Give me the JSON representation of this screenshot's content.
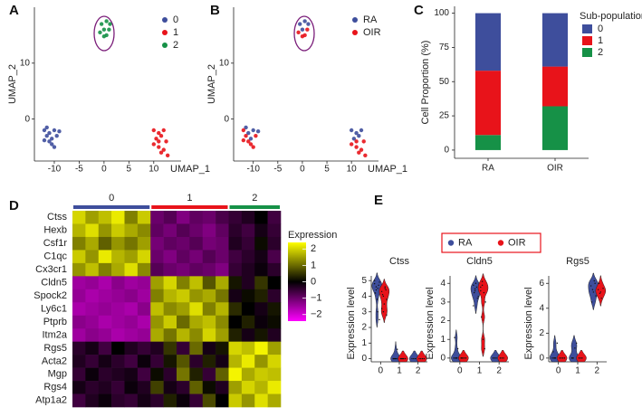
{
  "chart_data": [
    {
      "type": "scatter",
      "panel": "A",
      "xlabel": "UMAP_1",
      "ylabel": "UMAP_2",
      "xlim": [
        -14,
        15.5
      ],
      "ylim": [
        -7.5,
        20
      ],
      "xticks": [
        -10,
        -5,
        0,
        5,
        10
      ],
      "yticks": [
        0,
        10
      ],
      "series": [
        {
          "name": "0",
          "color": "#3e4e9c",
          "x": [
            -12,
            -11.5,
            -11,
            -10.5,
            -10,
            -9.5,
            -11,
            -10.5,
            -12,
            -9,
            -10,
            -11.5
          ],
          "y": [
            -2,
            -3,
            -2.5,
            -3.5,
            -2,
            -3,
            -4,
            -4.5,
            -3.8,
            -2.2,
            -5,
            -1.5
          ]
        },
        {
          "name": "1",
          "color": "#e8131a",
          "x": [
            10,
            11,
            12,
            10.5,
            11.5,
            12.5,
            11,
            12,
            11.5,
            10,
            12.8,
            11
          ],
          "y": [
            -2,
            -2.5,
            -2,
            -3.5,
            -3,
            -4,
            -5,
            -5.5,
            -6,
            -4.5,
            -6.5,
            -4
          ]
        },
        {
          "name": "2",
          "color": "#169147",
          "x": [
            -0.5,
            0.5,
            0,
            1,
            -0.8,
            0.5,
            0,
            1.2
          ],
          "y": [
            17,
            17.5,
            16,
            16,
            15.5,
            15,
            14.8,
            17
          ]
        }
      ]
    },
    {
      "type": "scatter",
      "panel": "B",
      "xlabel": "UMAP_1",
      "ylabel": "UMAP_2",
      "xlim": [
        -14,
        15.5
      ],
      "ylim": [
        -7.5,
        20
      ],
      "xticks": [
        -10,
        -5,
        0,
        5,
        10
      ],
      "yticks": [
        0,
        10
      ],
      "series": [
        {
          "name": "RA",
          "color": "#3e4e9c",
          "x": [
            0.5,
            -0.5,
            1.2,
            0,
            -11,
            -10,
            -9,
            -11.5,
            -10.5,
            10,
            11,
            12,
            11.5,
            10.5
          ],
          "y": [
            17.5,
            17,
            17,
            16,
            -2.5,
            -2,
            -2.2,
            -1.5,
            -3.5,
            -2,
            -2.5,
            -2,
            -3,
            -3.5
          ]
        },
        {
          "name": "OIR",
          "color": "#e8131a",
          "x": [
            1,
            -0.8,
            0.5,
            0,
            -12,
            -11.5,
            -11,
            -10.5,
            -12,
            -10,
            -9.5,
            12.5,
            11,
            12,
            11.5,
            10,
            12.8,
            11
          ],
          "y": [
            16,
            15.5,
            15,
            14.8,
            -2,
            -3,
            -4,
            -4.5,
            -3.8,
            -5,
            -3,
            -4,
            -5,
            -5.5,
            -6,
            -4.5,
            -6.5,
            -4
          ]
        }
      ]
    },
    {
      "type": "bar",
      "panel": "C",
      "stacked": true,
      "ylabel": "Cell Proportion (%)",
      "legend_title": "Sub-population",
      "categories": [
        "RA",
        "OIR"
      ],
      "ylim": [
        -6,
        105
      ],
      "yticks": [
        0,
        25,
        50,
        75,
        100
      ],
      "series": [
        {
          "name": "0",
          "color": "#3e4e9c",
          "values": [
            42,
            39
          ]
        },
        {
          "name": "1",
          "color": "#e8131a",
          "values": [
            47,
            29
          ]
        },
        {
          "name": "2",
          "color": "#169147",
          "values": [
            11,
            32
          ]
        }
      ]
    },
    {
      "type": "heatmap",
      "panel": "D",
      "colorbar_title": "Expression",
      "rows": [
        "Ctss",
        "Hexb",
        "Csf1r",
        "C1qc",
        "Cx3cr1",
        "Cldn5",
        "Spock2",
        "Ly6c1",
        "Ptprb",
        "Itm2a",
        "Rgs5",
        "Acta2",
        "Mgp",
        "Rgs4",
        "Atp1a2"
      ],
      "groups": [
        {
          "name": "0",
          "color": "#3e4e9c"
        },
        {
          "name": "1",
          "color": "#e8131a"
        },
        {
          "name": "2",
          "color": "#169147"
        }
      ],
      "column_groups": [
        "0",
        "0",
        "0",
        "0",
        "0",
        "0",
        "1",
        "1",
        "1",
        "1",
        "1",
        "1",
        "2",
        "2",
        "2",
        "2"
      ],
      "colors": [
        "#ff00ff",
        "#000000",
        "#ffff00"
      ],
      "clim": [
        -2.4,
        2.4
      ],
      "cticks": [
        2,
        1,
        0,
        {
          "value": -1,
          "label": "−1"
        },
        {
          "value": -2,
          "label": "−2"
        }
      ],
      "values": [
        [
          2,
          1.5,
          1.8,
          2.2,
          1.2,
          1.9,
          -1,
          -0.8,
          -1.2,
          -0.9,
          -1,
          -0.7,
          -0.5,
          -0.3,
          0,
          -0.6
        ],
        [
          1.7,
          2.1,
          1.4,
          1.9,
          1.6,
          1.3,
          -0.9,
          -1.1,
          -0.8,
          -1,
          -1.2,
          -0.9,
          -0.4,
          -0.6,
          -0.2,
          -0.5
        ],
        [
          1.2,
          1.6,
          0.9,
          1.4,
          1.1,
          1.5,
          -1.1,
          -0.9,
          -1,
          -0.8,
          -1.1,
          -1,
          -0.3,
          -0.5,
          0.1,
          -0.4
        ],
        [
          1.9,
          1.4,
          2.2,
          1.7,
          1.5,
          2,
          -1,
          -1.2,
          -0.9,
          -1.1,
          -0.8,
          -1,
          -0.6,
          -0.4,
          -0.2,
          -0.7
        ],
        [
          1.4,
          1.8,
          1.2,
          1.6,
          2.1,
          1.3,
          -0.8,
          -1,
          -1.1,
          -0.9,
          -1,
          -1.2,
          -0.5,
          -0.3,
          -0.1,
          -0.4
        ],
        [
          -1.5,
          -1.4,
          -1.6,
          -1.3,
          -1.5,
          -1.4,
          1.5,
          2,
          1.2,
          1.8,
          0.8,
          1.6,
          0.2,
          -0.3,
          0.5,
          0
        ],
        [
          -1.4,
          -1.6,
          -1.5,
          -1.4,
          -1.3,
          -1.5,
          1.2,
          1.7,
          1.9,
          1.4,
          1.6,
          1.1,
          -0.2,
          0.1,
          0.3,
          -0.4
        ],
        [
          -1.6,
          -1.5,
          -1.4,
          -1.5,
          -1.6,
          -1.3,
          1.8,
          1.3,
          1.5,
          2.1,
          1.2,
          1.7,
          0.4,
          0,
          -0.2,
          0.2
        ],
        [
          -1.3,
          -1.4,
          -1.6,
          -1.5,
          -1.4,
          -1.6,
          1.4,
          1.9,
          1,
          1.6,
          1.8,
          1.3,
          0,
          0.3,
          -0.1,
          0.1
        ],
        [
          -1.5,
          -1.3,
          -1.4,
          -1.6,
          -1.5,
          -1.4,
          1.6,
          1.1,
          1.7,
          1.3,
          2,
          1.5,
          0.3,
          -0.2,
          0.2,
          -0.3
        ],
        [
          -0.4,
          -0.2,
          -0.6,
          0,
          -0.3,
          -0.5,
          -0.3,
          0.5,
          -0.5,
          1,
          -0.2,
          0.2,
          2,
          1.8,
          2.3,
          1.5
        ],
        [
          -0.3,
          -0.5,
          -0.2,
          -0.4,
          -0.6,
          -0.1,
          -0.5,
          0.2,
          0.8,
          -0.4,
          0.3,
          -0.2,
          1.7,
          2.2,
          1.4,
          2
        ],
        [
          -0.5,
          -0.1,
          -0.4,
          -0.3,
          -0.2,
          -0.6,
          0.1,
          -0.4,
          1.1,
          0.3,
          -0.5,
          0.9,
          2.3,
          1.6,
          1.9,
          1.8
        ],
        [
          -0.2,
          -0.4,
          -0.3,
          -0.5,
          -0.1,
          -0.3,
          0.6,
          -0.2,
          -0.4,
          0.9,
          0.1,
          -0.3,
          1.5,
          2,
          1.7,
          2.2
        ],
        [
          -0.6,
          -0.3,
          -0.1,
          -0.4,
          -0.5,
          -0.2,
          -0.4,
          0.3,
          -0.1,
          -0.5,
          0.7,
          0,
          1.9,
          1.4,
          2.1,
          1.6
        ]
      ]
    },
    {
      "type": "violin",
      "panel": "E",
      "ylabel": "Expression level",
      "categories": [
        "0",
        "1",
        "2"
      ],
      "series": [
        {
          "name": "RA",
          "color": "#3e4e9c"
        },
        {
          "name": "OIR",
          "color": "#e8131a"
        }
      ],
      "facets": [
        {
          "title": "Ctss",
          "ylim": [
            -0.2,
            5.3
          ],
          "yticks": [
            0,
            1,
            2,
            3,
            4,
            5
          ],
          "values": [
            [
              [
                4.8,
                4.6,
                4.5,
                4.9,
                4.2,
                3.8,
                4.7,
                5.0,
                4.4,
                3.0,
                2.5
              ],
              [
                0,
                0,
                0,
                0,
                0,
                0,
                0.6,
                0
              ],
              [
                0,
                0,
                0,
                0
              ]
            ],
            [
              [
                4.3,
                4.0,
                4.5,
                3.8,
                4.1,
                3.5,
                4.4,
                3.2,
                3.0,
                4.6,
                2.8
              ],
              [
                0,
                0,
                0,
                0,
                0,
                0
              ],
              [
                0,
                0,
                0,
                0
              ]
            ]
          ]
        },
        {
          "title": "Cldn5",
          "ylim": [
            -0.2,
            4.4
          ],
          "yticks": [
            0,
            1,
            2,
            3,
            4
          ],
          "values": [
            [
              [
                0,
                0,
                0,
                0,
                1.1,
                0,
                0.5
              ],
              [
                3.9,
                3.6,
                3.8,
                3.3,
                3.5,
                4.0,
                3.2,
                2.8,
                3.7
              ],
              [
                0,
                0,
                0
              ]
            ],
            [
              [
                0,
                0,
                0,
                0,
                0
              ],
              [
                3.8,
                4.1,
                3.5,
                3.0,
                2.2,
                1.0,
                0.5,
                3.6,
                3.9
              ],
              [
                0,
                0,
                0
              ]
            ]
          ]
        },
        {
          "title": "Rgs5",
          "ylim": [
            -0.3,
            6.6
          ],
          "yticks": [
            0,
            2,
            4,
            6
          ],
          "values": [
            [
              [
                0,
                0,
                0,
                1.2,
                0.5,
                0
              ],
              [
                0,
                0,
                0.8,
                1.2,
                0
              ],
              [
                5.8,
                5.5,
                6.2,
                5.0,
                4.5,
                5.3,
                6.0
              ]
            ],
            [
              [
                0,
                0,
                0,
                0
              ],
              [
                0,
                0,
                0
              ],
              [
                5.5,
                5.2,
                4.8,
                5.6,
                6.0,
                5.3
              ]
            ]
          ]
        }
      ]
    }
  ]
}
